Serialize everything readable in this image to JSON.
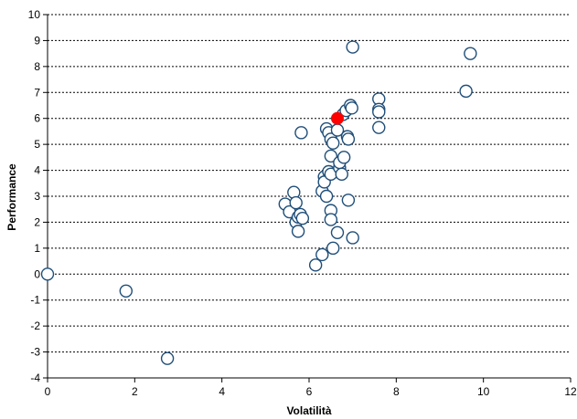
{
  "chart_data": {
    "type": "scatter",
    "xlabel": "Volatilità",
    "ylabel": "Performance",
    "xlim": [
      0,
      12
    ],
    "ylim": [
      -4,
      10
    ],
    "x_ticks": [
      "0",
      "2",
      "4",
      "6",
      "8",
      "10",
      "12"
    ],
    "y_ticks": [
      "-4",
      "-3",
      "-2",
      "-1",
      "0",
      "1",
      "2",
      "3",
      "4",
      "5",
      "6",
      "7",
      "8",
      "9",
      "10"
    ],
    "grid": "horizontal dotted",
    "colors": {
      "point_stroke": "#1f4e79",
      "highlight_fill": "#ff0000",
      "grid": "#000000"
    },
    "series": [
      {
        "points": [
          [
            0.0,
            0.0
          ],
          [
            1.8,
            -0.65
          ],
          [
            2.75,
            -3.25
          ],
          [
            5.45,
            2.7
          ],
          [
            5.55,
            2.4
          ],
          [
            5.65,
            3.15
          ],
          [
            5.7,
            2.75
          ],
          [
            5.7,
            2.0
          ],
          [
            5.75,
            1.65
          ],
          [
            5.75,
            2.2
          ],
          [
            5.8,
            2.3
          ],
          [
            5.85,
            2.15
          ],
          [
            5.82,
            5.45
          ],
          [
            6.15,
            0.35
          ],
          [
            6.3,
            0.75
          ],
          [
            6.3,
            3.2
          ],
          [
            6.35,
            3.75
          ],
          [
            6.35,
            3.55
          ],
          [
            6.4,
            3.0
          ],
          [
            6.4,
            5.6
          ],
          [
            6.45,
            5.45
          ],
          [
            6.45,
            3.95
          ],
          [
            6.5,
            3.85
          ],
          [
            6.5,
            2.45
          ],
          [
            6.5,
            2.1
          ],
          [
            6.5,
            5.2
          ],
          [
            6.5,
            4.55
          ],
          [
            6.55,
            5.05
          ],
          [
            6.55,
            1.0
          ],
          [
            6.65,
            1.6
          ],
          [
            6.65,
            5.55
          ],
          [
            6.7,
            4.1
          ],
          [
            6.7,
            4.3
          ],
          [
            6.75,
            3.85
          ],
          [
            6.78,
            6.15
          ],
          [
            6.8,
            4.5
          ],
          [
            6.85,
            6.3
          ],
          [
            6.88,
            5.3
          ],
          [
            6.9,
            5.2
          ],
          [
            6.9,
            2.85
          ],
          [
            6.95,
            6.5
          ],
          [
            6.98,
            6.4
          ],
          [
            7.0,
            1.4
          ],
          [
            7.0,
            8.75
          ],
          [
            7.6,
            6.75
          ],
          [
            7.6,
            6.35
          ],
          [
            7.6,
            6.25
          ],
          [
            7.6,
            5.65
          ],
          [
            9.6,
            7.05
          ],
          [
            9.7,
            8.5
          ]
        ]
      }
    ],
    "highlight": {
      "x": 6.65,
      "y": 6.0
    }
  }
}
